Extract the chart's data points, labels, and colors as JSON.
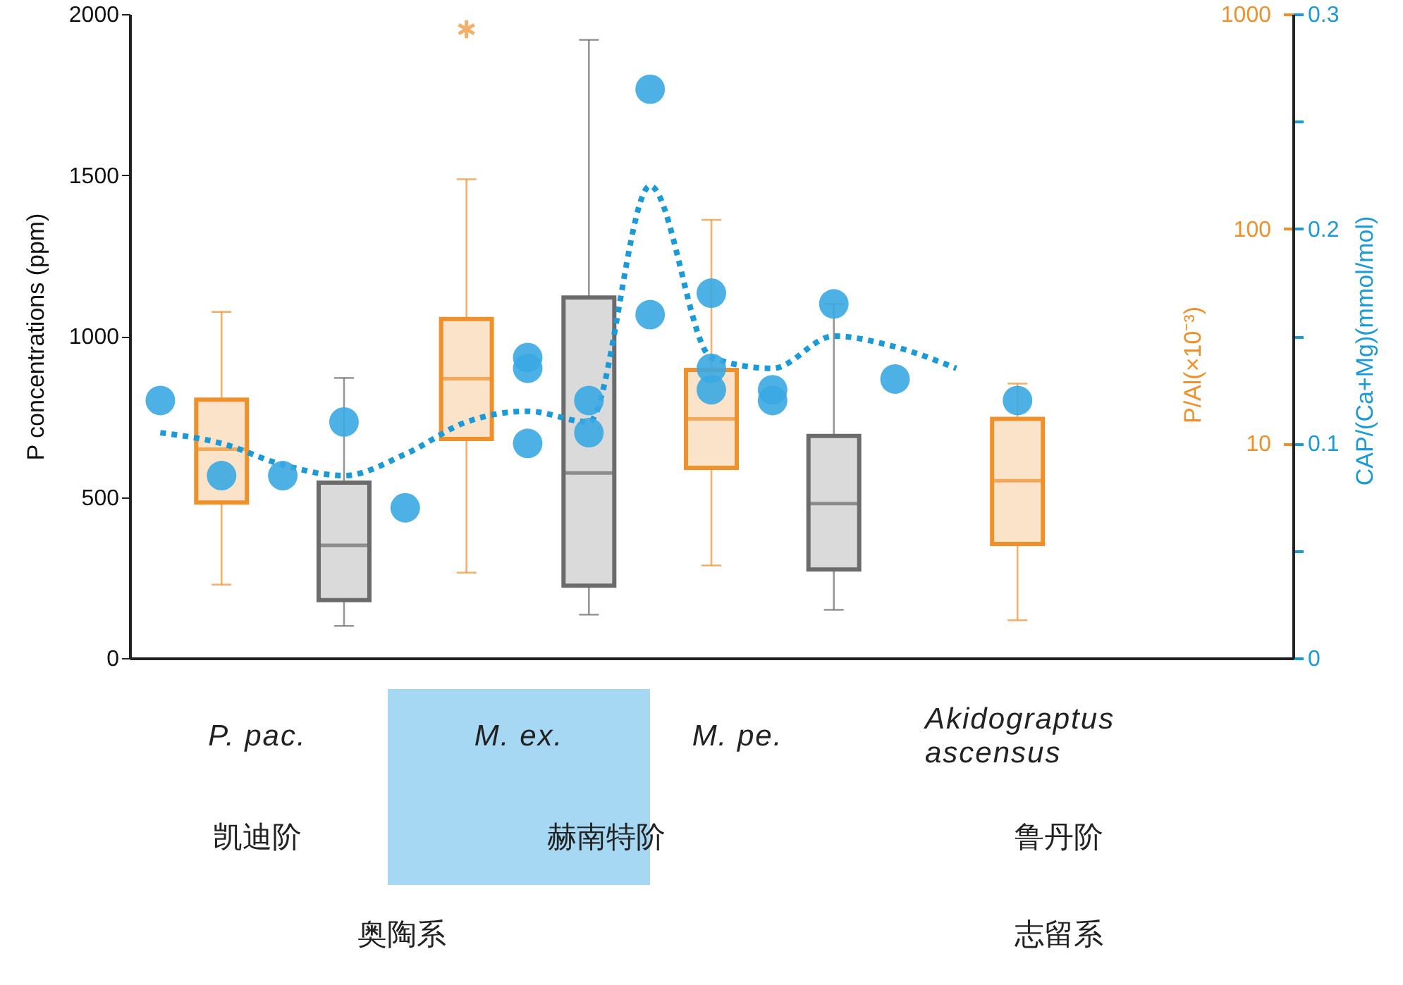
{
  "chart_data": {
    "type": "box",
    "categories": [
      null,
      null,
      null,
      null,
      null,
      null,
      null,
      null,
      null,
      null,
      null,
      null,
      null,
      null,
      null,
      null,
      null,
      null,
      null
    ],
    "series": [
      {
        "type": "box",
        "color": "#6b6b6b",
        "boxes": [
          null,
          null,
          null,
          {
            "low": 100,
            "q1": 180,
            "median": 350,
            "q3": 545,
            "high": 870
          },
          null,
          null,
          null,
          {
            "low": 135,
            "q1": 225,
            "median": 575,
            "q3": 1120,
            "high": 1920
          },
          null,
          null,
          null,
          {
            "low": 150,
            "q1": 275,
            "median": 480,
            "q3": 690,
            "high": 1100
          },
          null,
          null,
          null,
          null,
          null,
          null,
          null
        ]
      },
      {
        "type": "box",
        "axis": "y2",
        "color": "#f0902a",
        "boxes": [
          null,
          {
            "low": 2.2,
            "q1": 5.3,
            "median": 9.4,
            "q3": 16,
            "high": 41
          },
          null,
          null,
          null,
          {
            "low": 2.5,
            "q1": 10.5,
            "median": 20,
            "q3": 38,
            "high": 170,
            "outliers": [
              850
            ]
          },
          null,
          null,
          null,
          {
            "low": 2.7,
            "q1": 7.7,
            "median": 13,
            "q3": 22,
            "high": 110
          },
          null,
          null,
          null,
          null,
          {
            "low": 1.5,
            "q1": 3.4,
            "median": 6.7,
            "q3": 13,
            "high": 19
          },
          null,
          null,
          null,
          null
        ]
      },
      {
        "type": "line",
        "axis": "y3",
        "color": "#1a9ad6",
        "line_style": "dotted",
        "values": [
          0.105,
          0.1,
          0.09,
          0.085,
          0.095,
          0.11,
          0.115,
          0.11,
          0.22,
          0.14,
          0.135,
          0.15,
          0.145,
          0.135,
          null,
          null,
          null,
          null,
          null
        ]
      },
      {
        "type": "scatter",
        "axis": "y3",
        "color": "#3aa8e2",
        "marker": "circle",
        "values": [
          0.12,
          0.085,
          0.085,
          0.11,
          0.07,
          null,
          0.135,
          0.105,
          0.16,
          0.17,
          0.12,
          0.165,
          0.13,
          null,
          0.12,
          null,
          null,
          null,
          null
        ]
      },
      {
        "type": "scatter",
        "axis": "y3",
        "color": "#3aa8e2",
        "marker": "circle",
        "values": [
          null,
          null,
          null,
          null,
          null,
          null,
          0.14,
          0.12,
          0.265,
          0.135,
          0.125,
          null,
          null,
          null,
          null,
          null,
          null,
          null,
          null
        ]
      },
      {
        "type": "scatter",
        "axis": "y3",
        "color": "#3aa8e2",
        "marker": "circle",
        "values": [
          null,
          null,
          null,
          null,
          null,
          null,
          0.1,
          null,
          null,
          0.125,
          null,
          null,
          null,
          null,
          null,
          null,
          null,
          null,
          null
        ]
      }
    ],
    "ylabel": "P concentrations (ppm)",
    "y2label": "P/Al(×10⁻³)",
    "y3label": "CAP/(Ca+Mg)(mmol/mol)",
    "ylim": [
      0,
      2000
    ],
    "yticks": [
      0,
      500,
      1000,
      1500,
      2000
    ],
    "y2lim": [
      1,
      1000
    ],
    "y2ticks": [
      10,
      100,
      1000
    ],
    "y3lim": [
      0,
      0.3
    ],
    "y3ticks": [
      0,
      {
        "value": 0.05,
        "label": null
      },
      0.1,
      {
        "value": 0.15,
        "label": null
      },
      0.2,
      {
        "value": 0.25,
        "label": null
      },
      0.3
    ],
    "log": "y2",
    "annotations": [
      "P. pac.",
      "M. ex.",
      "M. pe.",
      "Akidograptus ascensus",
      "凯迪阶",
      "赫南特阶",
      "鲁丹阶",
      "奥陶系",
      "志留系"
    ]
  }
}
